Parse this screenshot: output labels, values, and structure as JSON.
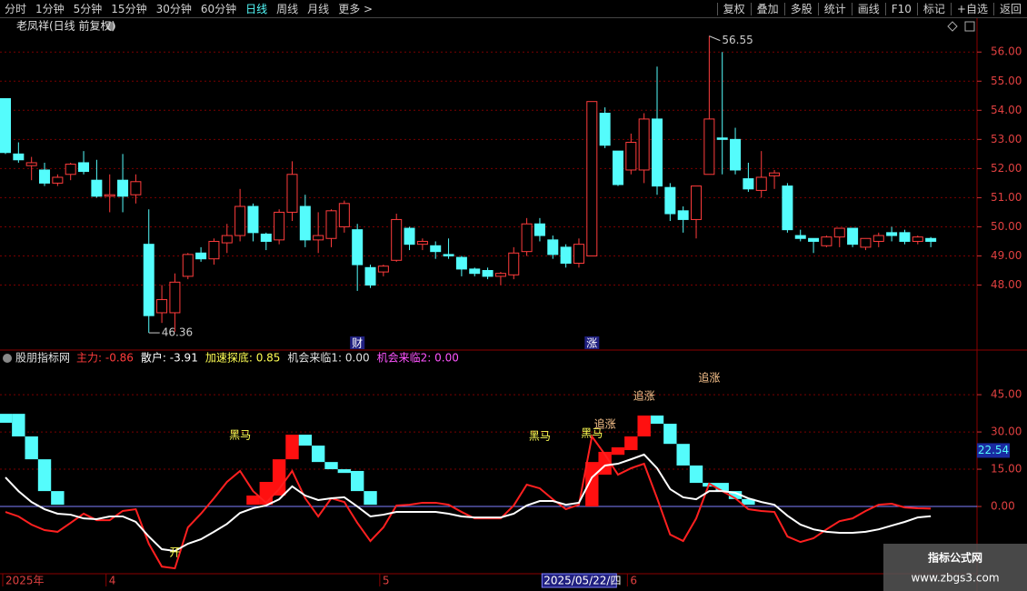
{
  "toolbar": {
    "left": [
      "分时",
      "1分钟",
      "5分钟",
      "15分钟",
      "30分钟",
      "60分钟",
      "日线",
      "周线",
      "月线",
      "更多 >"
    ],
    "active": 6,
    "right": [
      "复权",
      "叠加",
      "多股",
      "统计",
      "画线",
      "F10",
      "标记",
      "+自选",
      "返回"
    ]
  },
  "watermark": {
    "title": "指标公式网",
    "url": "www.zbgs3.com"
  },
  "chart_data": [
    {
      "type": "candlestick",
      "title": "老凤祥(日线 前复权)",
      "up_color": "#ff3c3c",
      "down_color": "#54fcfc",
      "grid": true,
      "ylim": [
        45.8,
        56.6
      ],
      "yticks": [
        {
          "value": 48,
          "label": "48.00"
        },
        {
          "value": 49,
          "label": "49.00"
        },
        {
          "value": 50,
          "label": "50.00"
        },
        {
          "value": 51,
          "label": "51.00"
        },
        {
          "value": 52,
          "label": "52.00"
        },
        {
          "value": 53,
          "label": "53.00"
        },
        {
          "value": 54,
          "label": "54.00"
        },
        {
          "value": 55,
          "label": "55.00"
        },
        {
          "value": 56,
          "label": "56.00"
        }
      ],
      "open": [
        54.4,
        52.5,
        52.1,
        51.95,
        51.5,
        51.8,
        52.2,
        51.6,
        51.05,
        51.6,
        51.1,
        49.4,
        47.05,
        47.05,
        48.3,
        49.1,
        48.9,
        49.45,
        49.7,
        50.7,
        49.75,
        49.55,
        50.5,
        50.7,
        49.55,
        49.6,
        50.0,
        49.9,
        48.6,
        48.45,
        48.85,
        49.95,
        49.4,
        49.35,
        49.05,
        48.95,
        48.55,
        48.5,
        48.3,
        48.35,
        49.15,
        50.1,
        49.55,
        49.3,
        48.75,
        49.0,
        53.9,
        52.6,
        51.95,
        51.95,
        53.7,
        51.35,
        50.55,
        50.25,
        51.8,
        53.05,
        53.0,
        51.65,
        51.25,
        51.75,
        51.4,
        49.7,
        49.6,
        49.35,
        49.65,
        49.95,
        49.3,
        49.5,
        49.8,
        49.8,
        49.5,
        49.6
      ],
      "high": [
        54.4,
        52.9,
        52.4,
        52.2,
        51.8,
        52.2,
        52.6,
        52.3,
        51.8,
        52.5,
        51.8,
        50.6,
        48.0,
        48.4,
        49.1,
        49.3,
        49.6,
        50.1,
        51.3,
        50.8,
        49.8,
        50.6,
        52.25,
        51.1,
        50.5,
        50.6,
        50.9,
        50.1,
        48.7,
        48.7,
        50.45,
        50.0,
        49.6,
        49.5,
        49.6,
        49.0,
        48.6,
        48.6,
        48.45,
        49.3,
        50.3,
        50.3,
        49.7,
        49.4,
        49.6,
        54.3,
        54.1,
        52.6,
        53.2,
        53.9,
        55.5,
        51.5,
        50.7,
        51.4,
        56.55,
        56.0,
        53.4,
        52.2,
        52.6,
        51.95,
        51.5,
        49.9,
        49.6,
        49.7,
        49.95,
        49.95,
        49.6,
        49.8,
        50.0,
        49.9,
        49.7,
        49.65
      ],
      "low": [
        52.5,
        52.2,
        51.6,
        51.4,
        51.4,
        51.6,
        51.8,
        51.0,
        50.5,
        50.5,
        50.8,
        46.36,
        46.7,
        46.4,
        48.2,
        48.8,
        48.7,
        49.1,
        49.5,
        49.5,
        49.2,
        49.4,
        50.2,
        49.3,
        49.1,
        49.3,
        49.8,
        47.8,
        47.9,
        48.3,
        48.8,
        49.2,
        49.2,
        48.9,
        48.9,
        48.3,
        48.3,
        48.2,
        48.0,
        48.2,
        49.0,
        49.5,
        48.9,
        48.6,
        48.6,
        49.0,
        52.7,
        51.4,
        51.8,
        51.5,
        51.1,
        50.2,
        49.8,
        49.6,
        51.8,
        51.8,
        51.8,
        51.2,
        51.0,
        51.3,
        49.8,
        49.5,
        49.1,
        49.3,
        49.3,
        49.3,
        49.2,
        49.3,
        49.5,
        49.4,
        49.4,
        49.3
      ],
      "close": [
        52.55,
        52.3,
        52.2,
        51.5,
        51.7,
        52.15,
        51.9,
        51.05,
        51.1,
        51.05,
        51.55,
        46.95,
        47.5,
        48.1,
        49.05,
        48.9,
        49.5,
        49.7,
        50.7,
        49.8,
        49.5,
        50.5,
        51.8,
        49.55,
        49.7,
        50.55,
        50.8,
        48.7,
        48.0,
        48.65,
        50.25,
        49.4,
        49.5,
        49.15,
        49.0,
        48.55,
        48.4,
        48.3,
        48.4,
        49.1,
        50.1,
        49.7,
        49.05,
        48.75,
        49.4,
        54.3,
        52.8,
        51.45,
        52.9,
        53.7,
        51.4,
        50.45,
        50.25,
        51.4,
        53.7,
        53.0,
        51.95,
        51.3,
        51.7,
        51.85,
        49.9,
        49.6,
        49.5,
        49.65,
        49.95,
        49.4,
        49.6,
        49.7,
        49.7,
        49.5,
        49.65,
        49.5
      ],
      "markers": [
        {
          "index": 27,
          "text": "财"
        },
        {
          "index": 45,
          "text": "涨"
        }
      ]
    },
    {
      "type": "indicator",
      "title": "股朋指标网",
      "header": [
        {
          "text": "主力: -0.86",
          "color": "#ff3c3c"
        },
        {
          "text": "散户: -3.91",
          "color": "#ffffff"
        },
        {
          "text": "加速探底: 0.85",
          "color": "#ffff54"
        },
        {
          "text": "机会来临1: 0.00",
          "color": "#e0e0e0"
        },
        {
          "text": "机会来临2: 0.00",
          "color": "#ff54ff"
        }
      ],
      "ylim": [
        -26.7,
        62.6
      ],
      "yticks": [
        {
          "value": 0,
          "label": "0.00"
        },
        {
          "value": 15,
          "label": "15.00"
        },
        {
          "value": 30,
          "label": "30.00"
        },
        {
          "value": 45,
          "label": "45.00"
        }
      ],
      "grid": true,
      "last_value": 22.54,
      "categories": [
        "2025年",
        null,
        null,
        null,
        null,
        null,
        null,
        null,
        "4",
        null,
        null,
        null,
        null,
        null,
        null,
        null,
        null,
        null,
        null,
        null,
        null,
        null,
        null,
        null,
        null,
        null,
        null,
        null,
        null,
        "5",
        null,
        null,
        null,
        null,
        null,
        null,
        null,
        null,
        null,
        null,
        null,
        null,
        null,
        null,
        null,
        null,
        null,
        null,
        "6",
        null,
        null,
        null,
        null,
        null,
        null,
        null,
        null,
        null,
        null,
        null,
        null,
        null,
        null,
        null,
        null,
        null,
        null,
        null,
        null,
        null,
        null,
        null
      ],
      "cursor_label": {
        "index": 42,
        "text": "2025/05/22/四"
      },
      "series": [
        {
          "color": "#ff2020",
          "values": [
            -2.2,
            -4.0,
            -7.3,
            -9.5,
            -10.2,
            -6.6,
            -2.9,
            -5.5,
            -5.5,
            -1.8,
            -1.1,
            -15.0,
            -24.2,
            -24.9,
            -8.4,
            -2.9,
            3.3,
            9.9,
            14.3,
            6.2,
            1.5,
            7.0,
            14.3,
            3.3,
            -4.0,
            3.3,
            1.8,
            -6.6,
            -13.9,
            -8.4,
            0.4,
            0.7,
            1.5,
            1.5,
            0.7,
            -2.2,
            -4.8,
            -4.8,
            -4.8,
            0.4,
            8.8,
            7.3,
            2.9,
            -1.1,
            0.7,
            28.2,
            20.9,
            12.8,
            15.4,
            17.2,
            3.3,
            -11.3,
            -13.9,
            -4.8,
            9.2,
            6.2,
            3.3,
            -1.1,
            -1.8,
            -2.2,
            -12.1,
            -14.3,
            -12.8,
            -9.2,
            -5.9,
            -4.8,
            -1.8,
            0.7,
            1.1,
            -0.4,
            -0.7,
            -0.86
          ]
        },
        {
          "color": "#ffffff",
          "values": [
            11.7,
            6.2,
            1.8,
            -1.1,
            -2.9,
            -3.3,
            -4.8,
            -5.1,
            -4.0,
            -4.0,
            -6.2,
            -12.1,
            -17.2,
            -17.9,
            -15.0,
            -13.2,
            -10.2,
            -7.0,
            -2.6,
            -0.7,
            0.4,
            2.9,
            8.1,
            4.4,
            2.6,
            3.3,
            3.7,
            0,
            -4.0,
            -3.3,
            -2.2,
            -2.2,
            -2.2,
            -2.2,
            -2.9,
            -4.0,
            -4.4,
            -4.4,
            -4.4,
            -2.9,
            0.4,
            2.2,
            2.2,
            0.7,
            1.5,
            11.7,
            16.5,
            17.2,
            19.0,
            20.9,
            15.4,
            7.0,
            3.7,
            2.9,
            6.2,
            6.2,
            5.5,
            3.3,
            1.8,
            0.7,
            -3.7,
            -7.3,
            -9.2,
            -10.2,
            -10.6,
            -10.6,
            -10.2,
            -9.2,
            -7.7,
            -6.2,
            -4.4,
            -3.91
          ]
        }
      ],
      "bars": [
        {
          "color": "#54fcfc",
          "x": [
            0,
            1,
            2,
            3,
            4,
            23,
            24,
            25,
            26,
            27,
            28,
            50,
            51,
            52,
            53,
            54,
            55,
            56,
            57
          ],
          "top": [
            37.3,
            37.3,
            28.2,
            19.0,
            6.2,
            28.9,
            24.5,
            17.9,
            15.0,
            14.3,
            6.2,
            36.6,
            33.3,
            25.2,
            16.5,
            9.5,
            9.5,
            6.2,
            3.0
          ],
          "bottom": [
            33.7,
            28.2,
            19.0,
            6.2,
            0.7,
            24.5,
            17.9,
            15.0,
            13.5,
            6.2,
            0.7,
            33.3,
            25.2,
            16.5,
            9.5,
            8.0,
            6.2,
            3.0,
            0.7
          ]
        },
        {
          "color": "#ff1010",
          "x": [
            19,
            20,
            21,
            22,
            45,
            46,
            47,
            48,
            49
          ],
          "top": [
            4.4,
            9.9,
            19.0,
            28.9,
            17.9,
            22.0,
            23.8,
            28.2,
            36.6
          ],
          "bottom": [
            0.7,
            0.7,
            4.4,
            19.0,
            0,
            12.8,
            20.8,
            22.7,
            28.2
          ]
        }
      ],
      "annotations": [
        {
          "text": "黑马",
          "index": 18,
          "value": 28.5,
          "color": "#ffff54"
        },
        {
          "text": "黑马",
          "index": 41,
          "value": 28.2,
          "color": "#ffff54"
        },
        {
          "text": "黑马",
          "index": 45,
          "value": 29.3,
          "color": "#ffff54"
        },
        {
          "text": "追涨",
          "index": 46,
          "value": 32.9,
          "color": "#ffc890"
        },
        {
          "text": "追涨",
          "index": 49,
          "value": 44.3,
          "color": "#ffc890"
        },
        {
          "text": "追涨",
          "index": 54,
          "value": 51.6,
          "color": "#ffc890"
        },
        {
          "text": "开",
          "index": 13,
          "value": -18.7,
          "color": "#ffff54"
        }
      ]
    }
  ]
}
